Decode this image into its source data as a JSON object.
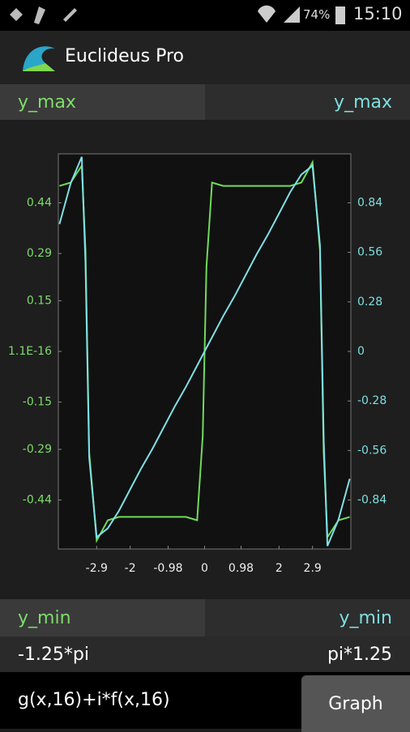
{
  "status_bar": {
    "battery": "74%",
    "time": "15:10"
  },
  "app_bar": {
    "title": "Euclideus Pro"
  },
  "y_max_row": {
    "left": "y_max",
    "right": "y_max"
  },
  "y_min_row": {
    "left": "y_min",
    "right": "y_min"
  },
  "x_range_row": {
    "left": "-1.25*pi",
    "right": "pi*1.25"
  },
  "input": {
    "expression": "g(x,16)+i*f(x,16)",
    "button": "Graph"
  },
  "chart_data": {
    "type": "line",
    "x": [
      -3.9,
      -3.6,
      -3.3,
      -3.2,
      -3.1,
      -2.9,
      -2.6,
      -2.3,
      -2.0,
      -1.7,
      -1.4,
      -1.1,
      -0.8,
      -0.5,
      -0.2,
      -0.05,
      0,
      0.05,
      0.2,
      0.5,
      0.8,
      1.1,
      1.4,
      1.7,
      2.0,
      2.3,
      2.6,
      2.9,
      3.1,
      3.2,
      3.3,
      3.6,
      3.9
    ],
    "series": [
      {
        "color": "#6fdc5a",
        "values": [
          0.49,
          0.5,
          0.55,
          0.3,
          -0.3,
          -0.56,
          -0.5,
          -0.49,
          -0.49,
          -0.49,
          -0.49,
          -0.49,
          -0.49,
          -0.49,
          -0.5,
          -0.25,
          0,
          0.25,
          0.5,
          0.49,
          0.49,
          0.49,
          0.49,
          0.49,
          0.49,
          0.49,
          0.5,
          0.56,
          0.3,
          -0.3,
          -0.55,
          -0.5,
          -0.49
        ]
      },
      {
        "color": "#7fe0e6",
        "axis": "y2",
        "values": [
          0.72,
          0.95,
          1.1,
          0.5,
          -0.6,
          -1.05,
          -1.0,
          -0.9,
          -0.78,
          -0.66,
          -0.55,
          -0.43,
          -0.31,
          -0.2,
          -0.08,
          -0.02,
          0,
          0.02,
          0.08,
          0.2,
          0.31,
          0.43,
          0.55,
          0.66,
          0.78,
          0.9,
          1.0,
          1.05,
          0.6,
          -0.5,
          -1.1,
          -0.95,
          -0.72
        ]
      }
    ],
    "xlim": [
      -3.93,
      3.93
    ],
    "xticks": [
      -2.9,
      -2,
      -0.98,
      0,
      0.98,
      2,
      2.9
    ],
    "ylim": [
      -0.585,
      0.585
    ],
    "yticks": [
      0.44,
      0.29,
      0.15,
      {
        "value": 1.1e-16,
        "label": "1.1E-16"
      },
      -0.15,
      -0.29,
      -0.44
    ],
    "y2lim": [
      -1.117,
      1.117
    ],
    "y2ticks": [
      0.84,
      0.56,
      0.28,
      0,
      -0.28,
      -0.56,
      -0.84
    ]
  }
}
